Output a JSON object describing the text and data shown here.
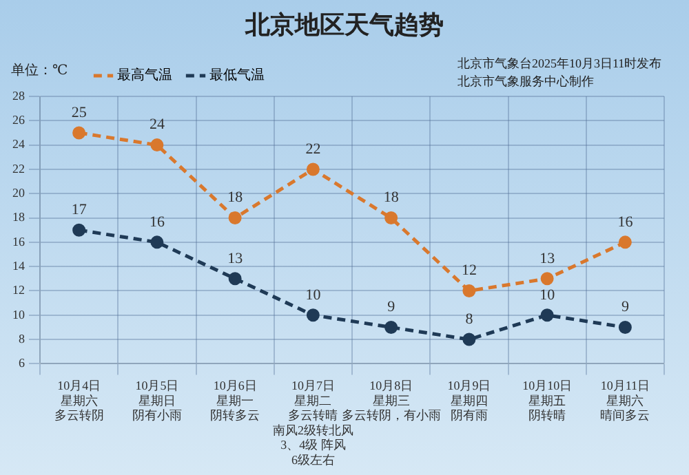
{
  "chart_data": {
    "type": "line",
    "title": "北京地区天气趋势",
    "subtitle": "北京市气象台2025年10月3日11时发布",
    "annotations": [
      "北京市气象服务中心制作"
    ],
    "ylabel": "单位：℃",
    "categories": [
      "10月4日星期六多云转阴",
      "10月5日星期日阴有小雨",
      "10月6日星期一阴转多云",
      "10月7日星期二多云转晴南风2级转北风3、4级 阵风6级左右",
      "10月8日星期三多云转阴，有小雨",
      "10月9日星期四阴有雨",
      "10月10日星期五阴转晴",
      "10月11日星期六晴间多云"
    ],
    "series": [
      {
        "name": "最高气温",
        "color": "#d9782d",
        "values": [
          25,
          24,
          18,
          22,
          18,
          12,
          13,
          16
        ]
      },
      {
        "name": "最低气温",
        "color": "#1f3a56",
        "values": [
          17,
          16,
          13,
          10,
          9,
          8,
          10,
          9
        ]
      }
    ],
    "ylim": [
      6,
      28
    ],
    "yticks": [
      6,
      8,
      10,
      12,
      14,
      16,
      18,
      20,
      22,
      24,
      26,
      28
    ],
    "grid": true,
    "legend": "top left",
    "marker": "circle",
    "line_style": "dashed",
    "data_labels": true
  }
}
